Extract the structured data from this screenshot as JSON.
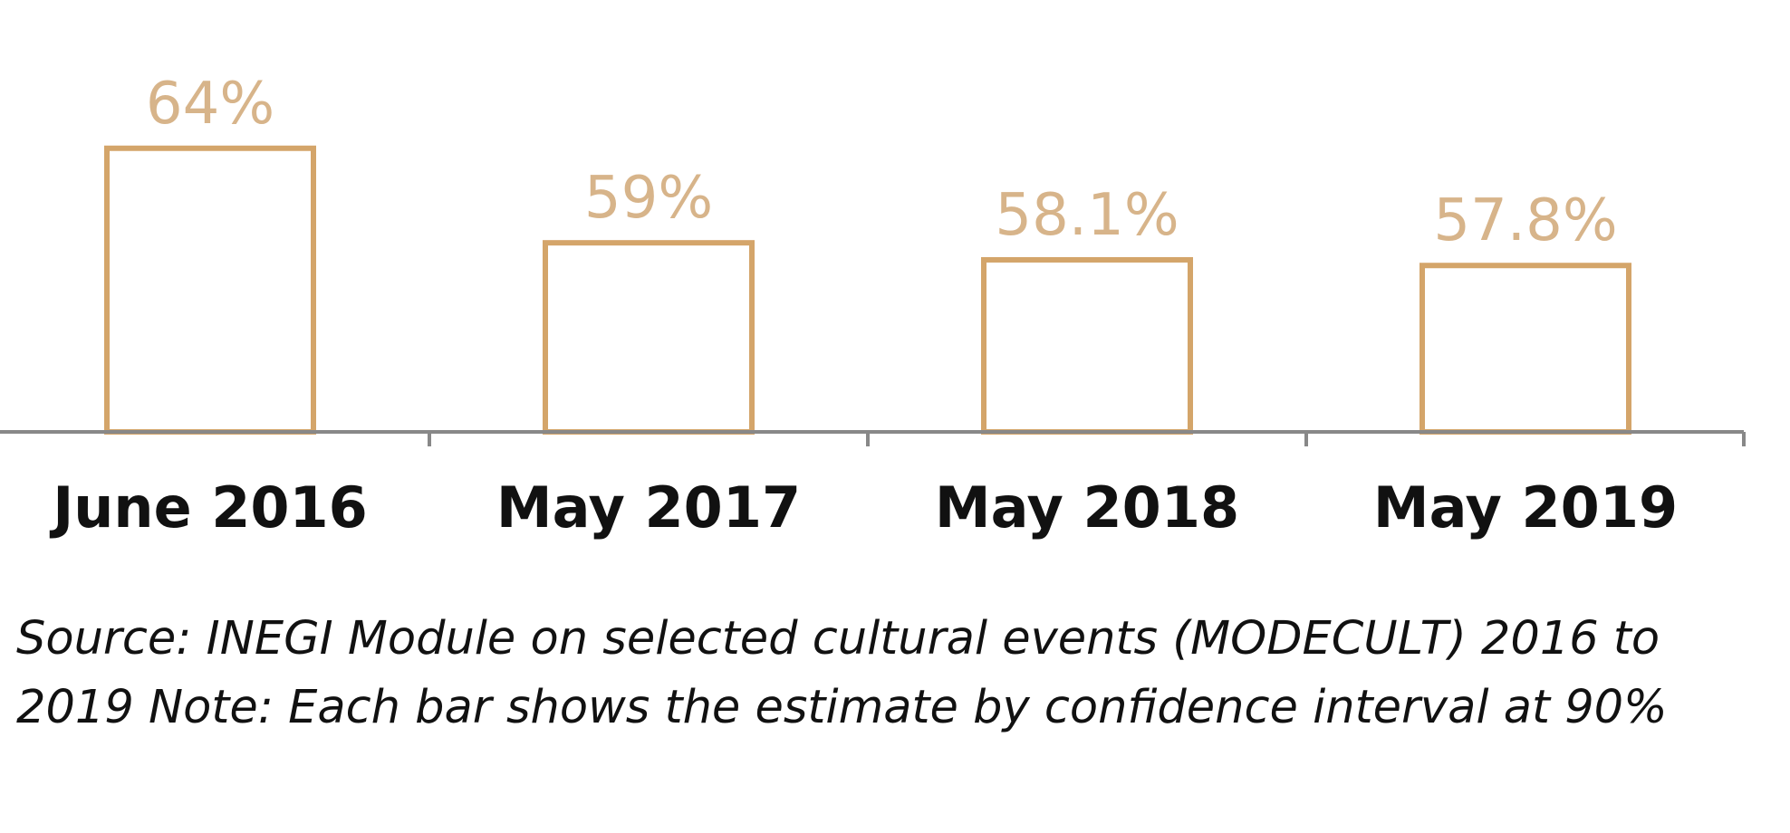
{
  "chart_data": {
    "type": "bar",
    "categories": [
      "June 2016",
      "May 2017",
      "May 2018",
      "May 2019"
    ],
    "values": [
      64,
      59,
      58.1,
      57.8
    ],
    "value_labels": [
      "64%",
      "59%",
      "58.1%",
      "57.8%"
    ],
    "ylim": [
      49,
      66
    ],
    "grid": false,
    "legend": "none"
  },
  "colors": {
    "bar_outline": "#d4a56a",
    "value_label": "#d7b48a",
    "axis": "#888888",
    "text": "#111111"
  },
  "note": "Source: INEGI Module on selected cultural events (MODECULT) 2016 to 2019 Note: Each bar shows the estimate by confidence interval at 90%"
}
